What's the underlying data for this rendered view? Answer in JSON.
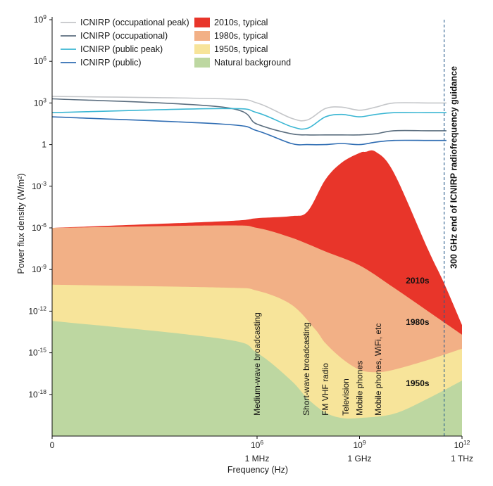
{
  "chart_data": {
    "type": "area",
    "xlabel": "Frequency (Hz)",
    "ylabel": "Power flux density (W/m²)",
    "x_scale": "log",
    "y_scale": "log",
    "xlim": [
      1,
      1000000000000.0
    ],
    "ylim": [
      1e-21,
      1000000000.0
    ],
    "x_ticks": [
      {
        "value": 1,
        "base": "0",
        "exp": "",
        "sub": ""
      },
      {
        "value": 1000000.0,
        "base": "10",
        "exp": "6",
        "sub": "1 MHz"
      },
      {
        "value": 1000000000.0,
        "base": "10",
        "exp": "9",
        "sub": "1 GHz"
      },
      {
        "value": 1000000000000.0,
        "base": "10",
        "exp": "12",
        "sub": "1 THz"
      }
    ],
    "y_ticks": [
      {
        "value": 1000000000.0,
        "base": "10",
        "exp": "9"
      },
      {
        "value": 1000000.0,
        "base": "10",
        "exp": "6"
      },
      {
        "value": 1000.0,
        "base": "10",
        "exp": "3"
      },
      {
        "value": 1,
        "base": "1",
        "exp": ""
      },
      {
        "value": 0.001,
        "base": "10",
        "exp": "-3"
      },
      {
        "value": 1e-06,
        "base": "10",
        "exp": "-6"
      },
      {
        "value": 1e-09,
        "base": "10",
        "exp": "-9"
      },
      {
        "value": 1e-12,
        "base": "10",
        "exp": "-12"
      },
      {
        "value": 1e-15,
        "base": "10",
        "exp": "-15"
      },
      {
        "value": 1e-18,
        "base": "10",
        "exp": "-18"
      }
    ],
    "areas": [
      {
        "name": "2010s, typical",
        "color": "#e8352a",
        "points": [
          [
            1,
            1e-06
          ],
          [
            100000.0,
            3e-06
          ],
          [
            1000000.0,
            5e-06
          ],
          [
            10000000.0,
            7e-06
          ],
          [
            30000000.0,
            1.5e-05
          ],
          [
            100000000.0,
            0.003
          ],
          [
            300000000.0,
            0.05
          ],
          [
            1000000000.0,
            0.25
          ],
          [
            1500000000.0,
            0.3
          ],
          [
            3000000000.0,
            0.3
          ],
          [
            10000000000.0,
            0.01
          ],
          [
            100000000000.0,
            3e-08
          ],
          [
            300000000000.0,
            1e-10
          ],
          [
            1000000000000.0,
            1e-13
          ]
        ]
      },
      {
        "name": "1980s, typical",
        "color": "#f2b086",
        "points": [
          [
            1,
            1e-06
          ],
          [
            100000.0,
            1.5e-06
          ],
          [
            1000000.0,
            1e-06
          ],
          [
            10000000.0,
            2e-07
          ],
          [
            100000000.0,
            2e-08
          ],
          [
            1000000000.0,
            2e-09
          ],
          [
            10000000000.0,
            5e-11
          ],
          [
            100000000000.0,
            1e-12
          ],
          [
            1000000000000.0,
            2e-14
          ]
        ]
      },
      {
        "name": "1950s, typical",
        "color": "#f7e49a",
        "points": [
          [
            1,
            8e-11
          ],
          [
            100000.0,
            5e-11
          ],
          [
            1000000.0,
            3e-11
          ],
          [
            10000000.0,
            3e-12
          ],
          [
            50000000.0,
            5e-14
          ],
          [
            100000000.0,
            5e-15
          ],
          [
            300000000.0,
            4e-16
          ],
          [
            1000000000.0,
            6e-17
          ],
          [
            3000000000.0,
            4e-17
          ],
          [
            10000000000.0,
            6e-17
          ],
          [
            100000000000.0,
            3e-16
          ],
          [
            1000000000000.0,
            2e-15
          ]
        ]
      },
      {
        "name": "Natural background",
        "color": "#bdd7a1",
        "points": [
          [
            1,
            2e-13
          ],
          [
            100000.0,
            1e-14
          ],
          [
            1000000.0,
            1e-15
          ],
          [
            10000000.0,
            1e-17
          ],
          [
            30000000.0,
            5e-19
          ],
          [
            100000000.0,
            5e-20
          ],
          [
            300000000.0,
            2e-20
          ],
          [
            1000000000.0,
            2e-20
          ],
          [
            10000000000.0,
            4e-20
          ],
          [
            100000000000.0,
            5e-19
          ],
          [
            1000000000000.0,
            1e-17
          ]
        ]
      }
    ],
    "lines": [
      {
        "name": "ICNIRP (occupational peak)",
        "color": "#c4c6c9",
        "points": [
          [
            1,
            3000
          ],
          [
            100000.0,
            2000
          ],
          [
            1000000.0,
            1000
          ],
          [
            10000000.0,
            80
          ],
          [
            30000000.0,
            60
          ],
          [
            100000000.0,
            400
          ],
          [
            300000000.0,
            500
          ],
          [
            1000000000.0,
            300
          ],
          [
            3000000000.0,
            500
          ],
          [
            10000000000.0,
            1000
          ],
          [
            100000000000.0,
            1000
          ],
          [
            350000000000.0,
            1000
          ]
        ]
      },
      {
        "name": "ICNIRP (occupational)",
        "color": "#5b6e7f",
        "points": [
          [
            1,
            2000
          ],
          [
            100000.0,
            500
          ],
          [
            1000000.0,
            30
          ],
          [
            10000000.0,
            6
          ],
          [
            30000000.0,
            5
          ],
          [
            100000000.0,
            5
          ],
          [
            300000000.0,
            5
          ],
          [
            1000000000.0,
            5
          ],
          [
            3000000000.0,
            6
          ],
          [
            10000000000.0,
            10
          ],
          [
            100000000000.0,
            10
          ],
          [
            350000000000.0,
            10
          ]
        ]
      },
      {
        "name": "ICNIRP (public peak)",
        "color": "#3ab6d3",
        "points": [
          [
            1,
            200
          ],
          [
            100000.0,
            400
          ],
          [
            1000000.0,
            200
          ],
          [
            10000000.0,
            20
          ],
          [
            30000000.0,
            15
          ],
          [
            100000000.0,
            100
          ],
          [
            300000000.0,
            150
          ],
          [
            1000000000.0,
            100
          ],
          [
            3000000000.0,
            150
          ],
          [
            10000000000.0,
            200
          ],
          [
            100000000000.0,
            200
          ],
          [
            350000000000.0,
            200
          ]
        ]
      },
      {
        "name": "ICNIRP (public)",
        "color": "#2f6db3",
        "points": [
          [
            1,
            100
          ],
          [
            100000.0,
            30
          ],
          [
            1000000.0,
            10
          ],
          [
            10000000.0,
            1.2
          ],
          [
            30000000.0,
            1
          ],
          [
            100000000.0,
            1
          ],
          [
            300000000.0,
            1.2
          ],
          [
            1000000000.0,
            1
          ],
          [
            3000000000.0,
            1.5
          ],
          [
            10000000000.0,
            2
          ],
          [
            100000000000.0,
            2
          ],
          [
            350000000000.0,
            2
          ]
        ]
      }
    ],
    "legend_left": [
      {
        "label": "ICNIRP (occupational peak)",
        "color": "#c4c6c9"
      },
      {
        "label": "ICNIRP (occupational)",
        "color": "#5b6e7f"
      },
      {
        "label": "ICNIRP (public peak)",
        "color": "#3ab6d3"
      },
      {
        "label": "ICNIRP (public)",
        "color": "#2f6db3"
      }
    ],
    "legend_right": [
      {
        "label": "2010s, typical",
        "color": "#e8352a"
      },
      {
        "label": "1980s, typical",
        "color": "#f2b086"
      },
      {
        "label": "1950s, typical",
        "color": "#f7e49a"
      },
      {
        "label": "Natural background",
        "color": "#bdd7a1"
      }
    ],
    "vertical_annotations": [
      {
        "text": "Medium-wave broadcasting",
        "x": 1000000.0,
        "y": 3e-20
      },
      {
        "text": "Short-wave broadcasting",
        "x": 28000000.0,
        "y": 3e-20
      },
      {
        "text": "FM VHF radio",
        "x": 100000000.0,
        "y": 3e-20
      },
      {
        "text": "Television",
        "x": 400000000.0,
        "y": 3e-20
      },
      {
        "text": "Mobile phones",
        "x": 1000000000.0,
        "y": 3e-20
      },
      {
        "text": "Mobile phones, WiFi, etc",
        "x": 3500000000.0,
        "y": 3e-20
      }
    ],
    "era_labels": [
      {
        "text": "2010s",
        "x": 50000000000.0,
        "y": 1e-10
      },
      {
        "text": "1980s",
        "x": 50000000000.0,
        "y": 1e-13
      },
      {
        "text": "1950s",
        "x": 50000000000.0,
        "y": 4e-18
      }
    ],
    "guidance_line": {
      "x": 300000000000.0,
      "label": "300 GHz end of ICNIRP radiofrequency guidance"
    }
  }
}
